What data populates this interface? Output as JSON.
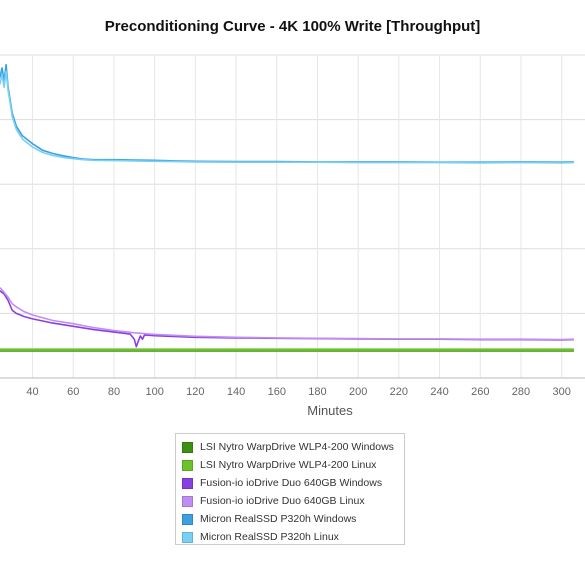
{
  "chart_data": {
    "type": "line",
    "title": "Preconditioning Curve - 4K 100% Write [Throughput]",
    "xlabel": "Minutes",
    "ylabel": "",
    "xlim": [
      24,
      306
    ],
    "ylim": [
      0,
      100
    ],
    "x_ticks": [
      40,
      60,
      80,
      100,
      120,
      140,
      160,
      180,
      200,
      220,
      240,
      260,
      280,
      300
    ],
    "grid": true,
    "legend_position": "bottom",
    "series": [
      {
        "name": "LSI Nytro WarpDrive WLP4-200 Windows",
        "color": "#3d8f12",
        "x": [
          24,
          306
        ],
        "y": [
          8.5,
          8.5
        ]
      },
      {
        "name": "LSI Nytro WarpDrive WLP4-200 Linux",
        "color": "#6cc22a",
        "x": [
          24,
          306
        ],
        "y": [
          8.8,
          8.8
        ]
      },
      {
        "name": "Fusion-io ioDrive Duo 640GB Windows",
        "color": "#8a3fe0",
        "x": [
          24,
          26,
          28,
          30,
          32,
          36,
          40,
          50,
          60,
          70,
          80,
          88,
          90,
          91,
          92,
          93,
          94,
          95,
          100,
          120,
          140,
          160,
          180,
          200,
          220,
          240,
          260,
          280,
          300,
          306
        ],
        "y": [
          27,
          26,
          24,
          21,
          20,
          19,
          18.3,
          17,
          16,
          15,
          14.2,
          13.6,
          12,
          9.7,
          11.5,
          13,
          12,
          13.3,
          13.1,
          12.6,
          12.4,
          12.3,
          12.2,
          12.1,
          12.0,
          12.0,
          11.9,
          11.9,
          11.8,
          11.9
        ]
      },
      {
        "name": "Fusion-io ioDrive Duo 640GB Linux",
        "color": "#c08ef2",
        "x": [
          24,
          26,
          28,
          30,
          32,
          36,
          40,
          50,
          60,
          70,
          80,
          90,
          100,
          120,
          140,
          160,
          180,
          200,
          220,
          240,
          260,
          280,
          300,
          306
        ],
        "y": [
          28,
          26.5,
          25,
          23,
          22,
          20.5,
          19.5,
          17.8,
          16.8,
          15.6,
          14.7,
          14,
          13.5,
          12.9,
          12.6,
          12.4,
          12.3,
          12.2,
          12.1,
          12.1,
          12.0,
          12.0,
          11.9,
          12.0
        ]
      },
      {
        "name": "Micron RealSSD P320h Windows",
        "color": "#3aa0e0",
        "x": [
          24,
          25,
          26,
          27,
          28,
          29,
          30,
          32,
          35,
          40,
          45,
          50,
          55,
          60,
          65,
          70,
          80,
          90,
          100,
          110,
          120,
          140,
          160,
          180,
          200,
          220,
          240,
          260,
          280,
          300,
          306
        ],
        "y": [
          93,
          96,
          92,
          97,
          90,
          86,
          82,
          78,
          75,
          72.5,
          70.5,
          69.5,
          68.8,
          68.2,
          67.8,
          67.6,
          67.6,
          67.5,
          67.4,
          67.2,
          67.1,
          67.0,
          67.0,
          66.9,
          66.9,
          66.9,
          66.8,
          66.8,
          66.9,
          66.8,
          66.9
        ]
      },
      {
        "name": "Micron RealSSD P320h Linux",
        "color": "#79d0f4",
        "x": [
          24,
          25,
          26,
          27,
          28,
          29,
          30,
          32,
          35,
          40,
          45,
          50,
          55,
          60,
          65,
          70,
          80,
          90,
          100,
          110,
          120,
          140,
          160,
          180,
          200,
          220,
          240,
          260,
          280,
          300,
          306
        ],
        "y": [
          91,
          94,
          90,
          95,
          89,
          85,
          81,
          77,
          74,
          71.5,
          69.8,
          68.9,
          68.3,
          67.9,
          67.6,
          67.4,
          67.3,
          67.2,
          67.1,
          67.0,
          66.9,
          66.8,
          66.8,
          66.8,
          66.7,
          66.7,
          66.7,
          66.6,
          66.7,
          66.6,
          66.7
        ]
      }
    ]
  }
}
